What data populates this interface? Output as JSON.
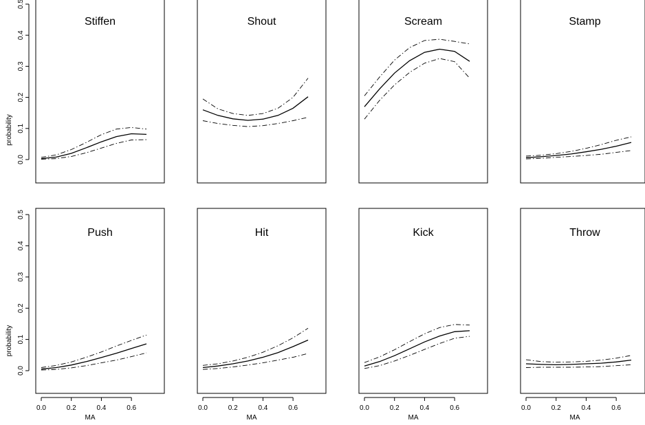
{
  "chart_data": {
    "type": "line",
    "xlabel": "MA",
    "ylabel": "probability",
    "xlim": [
      0.0,
      0.7
    ],
    "ylim": [
      0.0,
      0.5
    ],
    "x_ticks": [
      "0.0",
      "0.2",
      "0.4",
      "0.6"
    ],
    "y_ticks": [
      "0.0",
      "0.1",
      "0.2",
      "0.3",
      "0.4",
      "0.5"
    ],
    "grid": false,
    "legend": "none",
    "x": [
      0.0,
      0.1,
      0.2,
      0.3,
      0.4,
      0.5,
      0.6,
      0.7
    ],
    "panels": [
      {
        "title": "Stiffen",
        "fit": [
          0.003,
          0.008,
          0.02,
          0.038,
          0.057,
          0.074,
          0.083,
          0.081
        ],
        "upper": [
          0.007,
          0.015,
          0.032,
          0.055,
          0.08,
          0.098,
          0.103,
          0.098
        ],
        "lower": [
          0.001,
          0.003,
          0.01,
          0.022,
          0.037,
          0.052,
          0.063,
          0.064
        ]
      },
      {
        "title": "Shout",
        "fit": [
          0.16,
          0.142,
          0.131,
          0.126,
          0.13,
          0.142,
          0.165,
          0.202
        ],
        "upper": [
          0.195,
          0.163,
          0.148,
          0.142,
          0.148,
          0.165,
          0.2,
          0.262
        ],
        "lower": [
          0.125,
          0.116,
          0.11,
          0.106,
          0.109,
          0.116,
          0.125,
          0.136
        ]
      },
      {
        "title": "Scream",
        "fit": [
          0.17,
          0.227,
          0.278,
          0.318,
          0.345,
          0.355,
          0.348,
          0.316
        ],
        "upper": [
          0.205,
          0.265,
          0.32,
          0.36,
          0.383,
          0.387,
          0.38,
          0.372
        ],
        "lower": [
          0.13,
          0.19,
          0.24,
          0.28,
          0.31,
          0.325,
          0.315,
          0.262
        ]
      },
      {
        "title": "Stamp",
        "fit": [
          0.006,
          0.009,
          0.013,
          0.018,
          0.025,
          0.033,
          0.043,
          0.055
        ],
        "upper": [
          0.011,
          0.014,
          0.019,
          0.026,
          0.036,
          0.048,
          0.062,
          0.073
        ],
        "lower": [
          0.002,
          0.004,
          0.007,
          0.01,
          0.013,
          0.017,
          0.023,
          0.029
        ]
      },
      {
        "title": "Push",
        "fit": [
          0.005,
          0.01,
          0.018,
          0.029,
          0.042,
          0.056,
          0.071,
          0.086
        ],
        "upper": [
          0.01,
          0.017,
          0.028,
          0.043,
          0.06,
          0.079,
          0.097,
          0.114
        ],
        "lower": [
          0.002,
          0.004,
          0.009,
          0.016,
          0.025,
          0.034,
          0.045,
          0.057
        ]
      },
      {
        "title": "Hit",
        "fit": [
          0.01,
          0.015,
          0.022,
          0.031,
          0.043,
          0.058,
          0.077,
          0.098
        ],
        "upper": [
          0.017,
          0.022,
          0.031,
          0.043,
          0.059,
          0.08,
          0.105,
          0.136
        ],
        "lower": [
          0.004,
          0.007,
          0.012,
          0.018,
          0.025,
          0.034,
          0.043,
          0.055
        ]
      },
      {
        "title": "Kick",
        "fit": [
          0.015,
          0.029,
          0.048,
          0.07,
          0.092,
          0.111,
          0.125,
          0.128
        ],
        "upper": [
          0.026,
          0.044,
          0.067,
          0.093,
          0.118,
          0.138,
          0.148,
          0.146
        ],
        "lower": [
          0.007,
          0.016,
          0.031,
          0.049,
          0.068,
          0.087,
          0.104,
          0.11
        ]
      },
      {
        "title": "Throw",
        "fit": [
          0.022,
          0.02,
          0.019,
          0.02,
          0.022,
          0.024,
          0.028,
          0.034
        ],
        "upper": [
          0.035,
          0.029,
          0.027,
          0.028,
          0.03,
          0.034,
          0.04,
          0.049
        ],
        "lower": [
          0.01,
          0.011,
          0.011,
          0.011,
          0.012,
          0.013,
          0.016,
          0.019
        ]
      }
    ]
  }
}
